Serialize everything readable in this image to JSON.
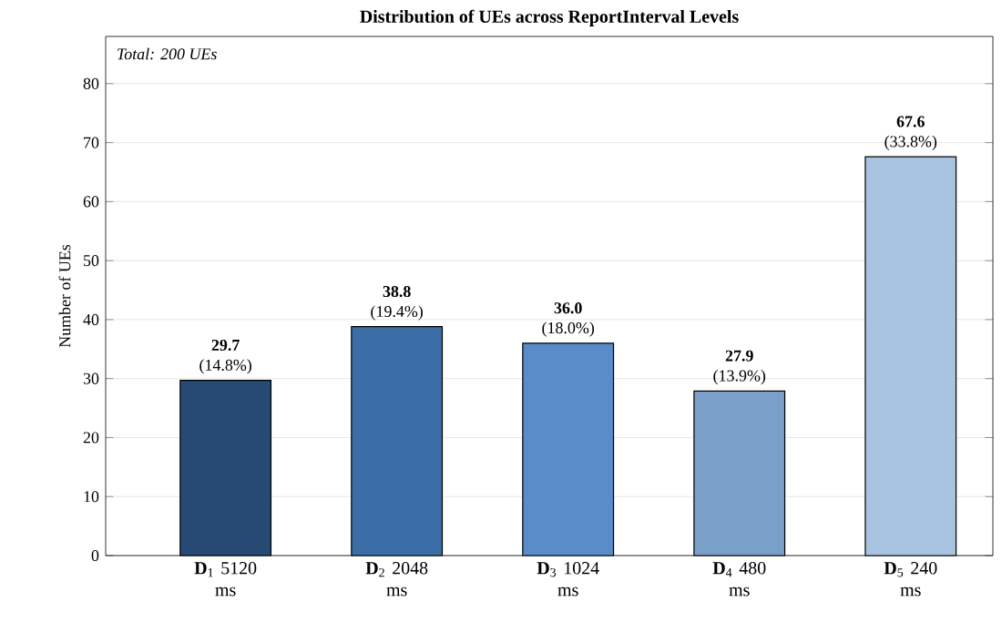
{
  "chart_data": {
    "type": "bar",
    "title": "Distribution of UEs across ReportInterval Levels",
    "ylabel": "Number of UEs",
    "categories": [
      "**D**$_{1}$ 5120 ms",
      "**D**$_{2}$ 2048 ms",
      "**D**$_{3}$ 1024 ms",
      "**D**$_{4}$ 480 ms",
      "**D**$_{5}$ 240 ms"
    ],
    "values": [
      29.7,
      38.8,
      36.0,
      27.9,
      67.6
    ],
    "colors": [
      "#264a73",
      "#3b6ea6",
      "#5a8cc9",
      "#7a9fc8",
      "#a9c4e0"
    ],
    "value_labels": [
      "**29.7** (14.8%)",
      "**38.8** (19.4%)",
      "**36.0** (18.0%)",
      "**27.9** (13.9%)",
      "**67.6** (33.8%)"
    ],
    "annotations": [
      "*Total: 200 UEs*"
    ],
    "ylim": [
      0,
      88
    ],
    "yticks": [
      0,
      10,
      20,
      30,
      40,
      50,
      60,
      70,
      80
    ],
    "grid": "y"
  }
}
